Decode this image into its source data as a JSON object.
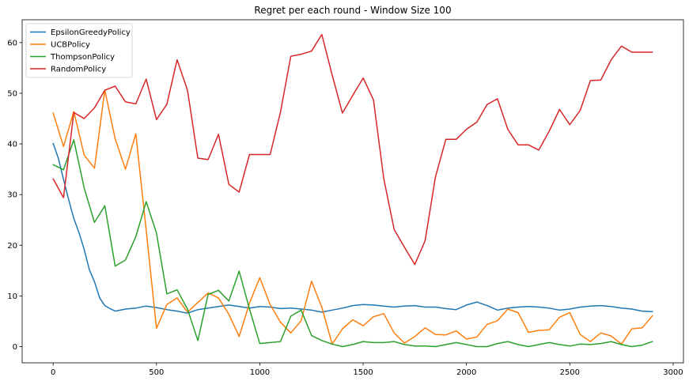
{
  "chart_data": {
    "type": "line",
    "title": "Regret per each round - Window Size 100",
    "xlabel": "",
    "ylabel": "",
    "xlim": [
      -150,
      3050
    ],
    "ylim": [
      -3.2,
      64.5
    ],
    "xticks": [
      0,
      500,
      1000,
      1500,
      2000,
      2500,
      3000
    ],
    "yticks": [
      0,
      10,
      20,
      30,
      40,
      50,
      60
    ],
    "grid": false,
    "legend_position": "top-left",
    "series": [
      {
        "name": "EpsilonGreedyPolicy",
        "color": "#1f77b4",
        "x": [
          0,
          25,
          50,
          75,
          100,
          125,
          150,
          175,
          200,
          225,
          250,
          275,
          300,
          350,
          400,
          450,
          500,
          550,
          600,
          650,
          700,
          750,
          800,
          850,
          900,
          950,
          1000,
          1050,
          1100,
          1150,
          1200,
          1250,
          1300,
          1350,
          1400,
          1450,
          1500,
          1550,
          1600,
          1650,
          1700,
          1750,
          1800,
          1850,
          1900,
          1950,
          2000,
          2050,
          2100,
          2150,
          2200,
          2250,
          2300,
          2350,
          2400,
          2450,
          2500,
          2550,
          2600,
          2650,
          2700,
          2750,
          2800,
          2850,
          2900
        ],
        "y": [
          40.1,
          37.2,
          33.0,
          29.0,
          25.3,
          22.5,
          19.2,
          15.2,
          12.8,
          9.6,
          8.1,
          7.5,
          7.0,
          7.4,
          7.6,
          8.0,
          7.7,
          7.3,
          7.0,
          6.6,
          7.3,
          7.6,
          7.9,
          8.2,
          7.9,
          7.6,
          7.9,
          7.8,
          7.5,
          7.6,
          7.4,
          7.2,
          6.8,
          7.2,
          7.6,
          8.1,
          8.3,
          8.2,
          8.0,
          7.8,
          8.0,
          8.1,
          7.8,
          7.8,
          7.5,
          7.3,
          8.2,
          8.8,
          8.1,
          7.2,
          7.6,
          7.8,
          7.9,
          7.8,
          7.6,
          7.2,
          7.4,
          7.8,
          8.0,
          8.1,
          7.9,
          7.6,
          7.4,
          7.0,
          6.9
        ]
      },
      {
        "name": "UCBPolicy",
        "color": "#ff7f0e",
        "x": [
          0,
          50,
          100,
          150,
          200,
          250,
          300,
          350,
          400,
          450,
          500,
          550,
          600,
          650,
          700,
          750,
          800,
          850,
          900,
          950,
          1000,
          1050,
          1100,
          1150,
          1200,
          1250,
          1300,
          1350,
          1400,
          1450,
          1500,
          1550,
          1600,
          1650,
          1700,
          1750,
          1800,
          1850,
          1900,
          1950,
          2000,
          2050,
          2100,
          2150,
          2200,
          2250,
          2300,
          2350,
          2400,
          2450,
          2500,
          2550,
          2600,
          2650,
          2700,
          2750,
          2800,
          2850,
          2900
        ],
        "y": [
          46.1,
          39.5,
          46.4,
          37.8,
          35.2,
          50.6,
          41.0,
          35.0,
          42.0,
          23.0,
          3.6,
          8.3,
          9.6,
          6.8,
          8.7,
          10.6,
          9.6,
          6.4,
          2.0,
          8.6,
          13.6,
          8.3,
          4.8,
          2.7,
          5.1,
          12.9,
          7.8,
          0.5,
          3.5,
          5.3,
          4.1,
          5.9,
          6.5,
          2.7,
          0.7,
          2.0,
          3.7,
          2.4,
          2.3,
          3.1,
          1.5,
          1.9,
          4.4,
          5.1,
          7.4,
          6.7,
          2.8,
          3.2,
          3.3,
          5.8,
          6.7,
          2.4,
          1.0,
          2.7,
          2.1,
          0.5,
          3.5,
          3.7,
          6.1
        ]
      },
      {
        "name": "ThompsonPolicy",
        "color": "#2ca02c",
        "x": [
          0,
          50,
          100,
          150,
          200,
          250,
          300,
          350,
          400,
          450,
          500,
          550,
          600,
          650,
          700,
          750,
          800,
          850,
          900,
          950,
          1000,
          1050,
          1100,
          1150,
          1200,
          1250,
          1300,
          1350,
          1400,
          1450,
          1500,
          1550,
          1600,
          1650,
          1700,
          1750,
          1800,
          1850,
          1900,
          1950,
          2000,
          2050,
          2100,
          2150,
          2200,
          2250,
          2300,
          2350,
          2400,
          2450,
          2500,
          2550,
          2600,
          2650,
          2700,
          2750,
          2800,
          2850,
          2900
        ],
        "y": [
          35.9,
          34.9,
          40.8,
          31.3,
          24.5,
          27.8,
          15.9,
          17.1,
          21.7,
          28.6,
          22.4,
          10.4,
          11.2,
          7.4,
          1.2,
          10.3,
          11.1,
          9.0,
          14.9,
          7.4,
          0.6,
          0.8,
          1.0,
          6.0,
          7.2,
          2.2,
          1.2,
          0.5,
          0.0,
          0.4,
          1.0,
          0.8,
          0.8,
          1.0,
          0.4,
          0.1,
          0.1,
          0.0,
          0.4,
          0.8,
          0.4,
          0.0,
          0.0,
          0.6,
          1.0,
          0.4,
          0.0,
          0.4,
          0.8,
          0.4,
          0.1,
          0.5,
          0.4,
          0.6,
          1.0,
          0.4,
          0.0,
          0.3,
          1.0
        ]
      },
      {
        "name": "RandomPolicy",
        "color": "#d62728",
        "x": [
          0,
          50,
          100,
          150,
          200,
          250,
          300,
          350,
          400,
          450,
          500,
          550,
          600,
          650,
          700,
          750,
          800,
          850,
          900,
          950,
          1000,
          1050,
          1100,
          1150,
          1200,
          1250,
          1300,
          1350,
          1400,
          1450,
          1500,
          1550,
          1600,
          1650,
          1700,
          1750,
          1800,
          1850,
          1900,
          1950,
          2000,
          2050,
          2100,
          2150,
          2200,
          2250,
          2300,
          2350,
          2400,
          2450,
          2500,
          2550,
          2600,
          2650,
          2700,
          2750,
          2800,
          2850,
          2900
        ],
        "y": [
          33.1,
          29.4,
          46.2,
          45.0,
          47.1,
          50.6,
          51.4,
          48.3,
          47.9,
          52.8,
          44.8,
          47.8,
          56.6,
          50.6,
          37.2,
          36.9,
          41.9,
          32.0,
          30.5,
          37.9,
          37.9,
          37.9,
          46.3,
          57.3,
          57.7,
          58.3,
          61.6,
          53.6,
          46.1,
          49.6,
          53.0,
          48.7,
          33.1,
          23.1,
          19.6,
          16.2,
          20.9,
          33.5,
          40.9,
          40.9,
          42.9,
          44.3,
          47.8,
          48.9,
          42.9,
          39.8,
          39.8,
          38.8,
          42.5,
          46.8,
          43.8,
          46.6,
          52.5,
          52.6,
          56.6,
          59.3,
          58.1,
          58.1,
          58.1
        ]
      }
    ]
  }
}
